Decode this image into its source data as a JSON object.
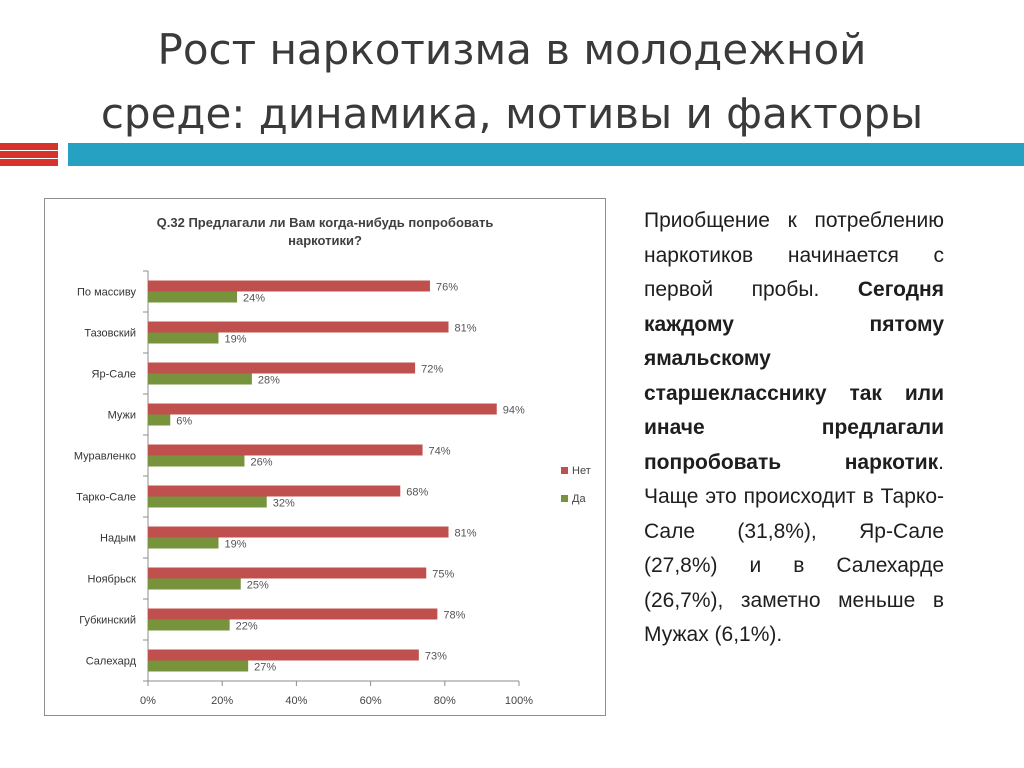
{
  "slide": {
    "title_line1": "Рост наркотизма в молодежной",
    "title_line2": "среде: динамика, мотивы и факторы"
  },
  "body_text": {
    "part1": "Приобщение к потреблению наркотиков начинается с первой пробы. ",
    "part2_bold": "Сегодня каждому пятому ямальскому старшекласснику так или иначе предлагали попробовать наркотик",
    "part3": ". Чаще это происходит в Тарко-Сале (31,8%), Яр-Сале (27,8%) и в Салехарде (26,7%), заметно меньше в Мужах (6,1%)."
  },
  "colors": {
    "net": "#c0504d",
    "da": "#77933c",
    "accent_red": "#d8322d",
    "accent_blue": "#27a1c2"
  },
  "chart_data": {
    "type": "bar",
    "orientation": "horizontal",
    "title_line1": "Q.32 Предлагали ли Вам когда-нибудь попробовать",
    "title_line2": "наркотики?",
    "categories": [
      "По массиву",
      "Тазовский",
      "Яр-Сале",
      "Мужи",
      "Муравленко",
      "Тарко-Сале",
      "Надым",
      "Ноябрьск",
      "Губкинский",
      "Салехард"
    ],
    "series": [
      {
        "name": "Нет",
        "values": [
          76,
          81,
          72,
          94,
          74,
          68,
          81,
          75,
          78,
          73
        ],
        "labels": [
          "76%",
          "81%",
          "72%",
          "94%",
          "74%",
          "68%",
          "81%",
          "75%",
          "78%",
          "73%"
        ]
      },
      {
        "name": "Да",
        "values": [
          24,
          19,
          28,
          6,
          26,
          32,
          19,
          25,
          22,
          27
        ],
        "labels": [
          "24%",
          "19%",
          "28%",
          "6%",
          "26%",
          "32%",
          "19%",
          "25%",
          "22%",
          "27%"
        ]
      }
    ],
    "xlim": [
      0,
      100
    ],
    "xticks": [
      "0%",
      "20%",
      "40%",
      "60%",
      "80%",
      "100%"
    ],
    "legend_position": "right",
    "grid": false
  }
}
